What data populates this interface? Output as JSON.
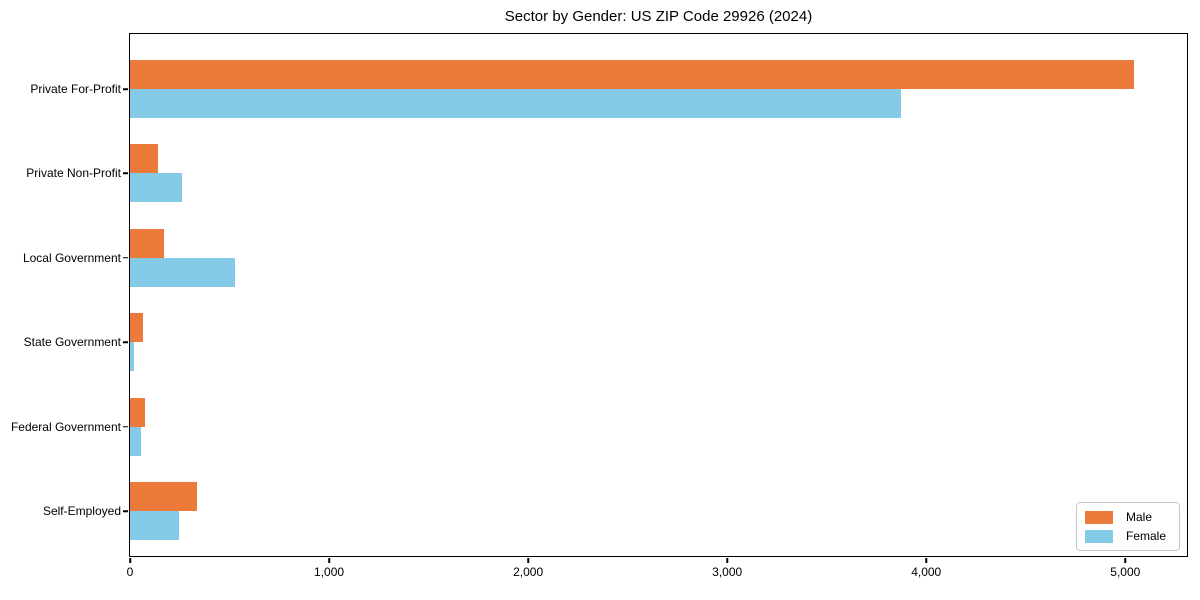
{
  "chart_data": {
    "type": "bar",
    "orientation": "horizontal",
    "title": "Sector by Gender: US ZIP Code 29926 (2024)",
    "categories": [
      "Private For-Profit",
      "Private Non-Profit",
      "Local Government",
      "State Government",
      "Federal Government",
      "Self-Employed"
    ],
    "series": [
      {
        "name": "Male",
        "color": "#EC7A3A",
        "values": [
          5045,
          140,
          170,
          65,
          75,
          335
        ]
      },
      {
        "name": "Female",
        "color": "#85CBE8",
        "values": [
          3875,
          260,
          525,
          20,
          55,
          245
        ]
      }
    ],
    "xlabel": "",
    "ylabel": "",
    "xlim": [
      0,
      5310
    ],
    "x_ticks": [
      0,
      1000,
      2000,
      3000,
      4000,
      5000
    ],
    "x_tick_labels": [
      "0",
      "1,000",
      "2,000",
      "3,000",
      "4,000",
      "5,000"
    ],
    "grid": false,
    "legend_position": "lower right",
    "colors": {
      "spine": "#000000",
      "background": "#FFFFFF",
      "legend_border": "#C8C8C8"
    }
  }
}
